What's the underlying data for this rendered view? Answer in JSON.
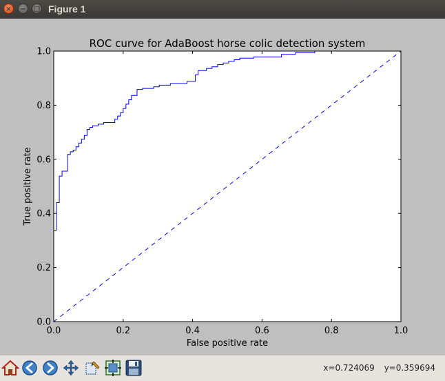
{
  "window": {
    "title": "Figure 1",
    "close_glyph": "×",
    "min_glyph": "−",
    "max_glyph": "□"
  },
  "toolbar": {
    "icons": [
      "home-icon",
      "back-icon",
      "forward-icon",
      "pan-icon",
      "zoom-icon",
      "subplots-icon",
      "save-icon"
    ]
  },
  "status": {
    "x_text": "x=0.724069",
    "y_text": "y=0.359694"
  },
  "chart_data": {
    "type": "line",
    "title": "ROC curve for AdaBoost horse colic detection system",
    "xlabel": "False positive rate",
    "ylabel": "True positive rate",
    "xlim": [
      0,
      1
    ],
    "ylim": [
      0,
      1
    ],
    "xticks": [
      0.0,
      0.2,
      0.4,
      0.6,
      0.8,
      1.0
    ],
    "yticks": [
      0.0,
      0.2,
      0.4,
      0.6,
      0.8,
      1.0
    ],
    "xtick_labels": [
      "0.0",
      "0.2",
      "0.4",
      "0.6",
      "0.8",
      "1.0"
    ],
    "ytick_labels": [
      "0.0",
      "0.2",
      "0.4",
      "0.6",
      "0.8",
      "1.0"
    ],
    "grid": false,
    "colors": {
      "roc": "#0000ff",
      "diagonal": "#0000ff"
    },
    "series": [
      {
        "style": "solid-step",
        "x": [
          0.0,
          0.008,
          0.008,
          0.016,
          0.016,
          0.024,
          0.024,
          0.04,
          0.04,
          0.048,
          0.048,
          0.056,
          0.056,
          0.064,
          0.064,
          0.072,
          0.072,
          0.08,
          0.08,
          0.088,
          0.088,
          0.096,
          0.096,
          0.104,
          0.104,
          0.112,
          0.112,
          0.128,
          0.128,
          0.144,
          0.144,
          0.176,
          0.176,
          0.184,
          0.184,
          0.192,
          0.192,
          0.2,
          0.2,
          0.208,
          0.208,
          0.216,
          0.216,
          0.224,
          0.224,
          0.24,
          0.24,
          0.256,
          0.256,
          0.288,
          0.288,
          0.304,
          0.304,
          0.336,
          0.336,
          0.384,
          0.384,
          0.408,
          0.408,
          0.416,
          0.416,
          0.44,
          0.44,
          0.456,
          0.456,
          0.472,
          0.472,
          0.488,
          0.488,
          0.504,
          0.504,
          0.52,
          0.52,
          0.536,
          0.536,
          0.576,
          0.576,
          0.656,
          0.656,
          0.696,
          0.696,
          0.752,
          0.752,
          1.0
        ],
        "y": [
          0.338,
          0.338,
          0.44,
          0.44,
          0.538,
          0.538,
          0.556,
          0.556,
          0.618,
          0.618,
          0.628,
          0.628,
          0.634,
          0.634,
          0.646,
          0.646,
          0.66,
          0.66,
          0.674,
          0.674,
          0.688,
          0.688,
          0.71,
          0.71,
          0.718,
          0.718,
          0.724,
          0.724,
          0.73,
          0.73,
          0.736,
          0.736,
          0.748,
          0.748,
          0.76,
          0.76,
          0.772,
          0.772,
          0.788,
          0.788,
          0.804,
          0.804,
          0.82,
          0.82,
          0.836,
          0.836,
          0.858,
          0.858,
          0.862,
          0.862,
          0.868,
          0.868,
          0.874,
          0.874,
          0.88,
          0.88,
          0.888,
          0.888,
          0.912,
          0.912,
          0.928,
          0.928,
          0.936,
          0.936,
          0.942,
          0.942,
          0.95,
          0.95,
          0.956,
          0.956,
          0.962,
          0.962,
          0.968,
          0.968,
          0.974,
          0.974,
          0.978,
          0.978,
          0.988,
          0.988,
          0.994,
          0.994,
          1.0,
          1.0
        ]
      },
      {
        "style": "dashed",
        "x": [
          0.0,
          1.0
        ],
        "y": [
          0.0,
          1.0
        ]
      }
    ]
  }
}
